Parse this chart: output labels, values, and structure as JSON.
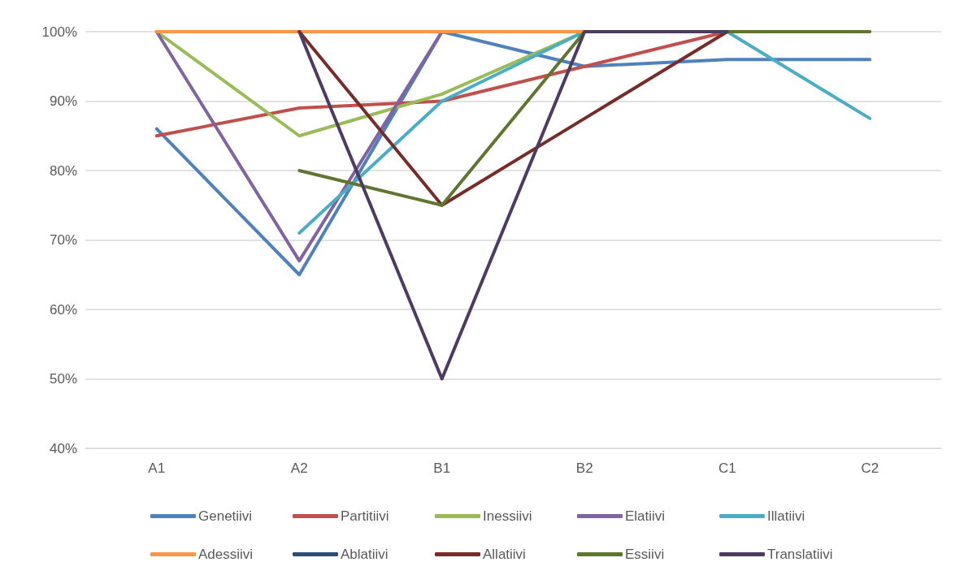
{
  "chart_data": {
    "type": "line",
    "categories": [
      "A1",
      "A2",
      "B1",
      "B2",
      "C1",
      "C2"
    ],
    "series": [
      {
        "name": "Genetiivi",
        "color": "#4f81bd",
        "values": [
          86,
          65,
          100,
          95,
          96,
          96
        ]
      },
      {
        "name": "Partitiivi",
        "color": "#c0504d",
        "values": [
          85,
          89,
          90,
          95,
          100,
          null
        ]
      },
      {
        "name": "Inessiivi",
        "color": "#9bbb59",
        "values": [
          100,
          85,
          91,
          100,
          null,
          null
        ]
      },
      {
        "name": "Elatiivi",
        "color": "#8064a2",
        "values": [
          100,
          67,
          100,
          null,
          null,
          null
        ]
      },
      {
        "name": "Illatiivi",
        "color": "#4bacc6",
        "values": [
          null,
          71,
          90,
          100,
          100,
          87.5
        ]
      },
      {
        "name": "Adessiivi",
        "color": "#f79646",
        "values": [
          100,
          100,
          100,
          100,
          null,
          null
        ]
      },
      {
        "name": "Ablatiivi",
        "color": "#2c4d75",
        "values": [
          null,
          null,
          null,
          null,
          null,
          null
        ]
      },
      {
        "name": "Allatiivi",
        "color": "#772c2a",
        "values": [
          null,
          100,
          75,
          87.5,
          100,
          null
        ]
      },
      {
        "name": "Essiivi",
        "color": "#5f7530",
        "values": [
          null,
          80,
          75,
          100,
          100,
          100
        ]
      },
      {
        "name": "Translatiivi",
        "color": "#4d3b62",
        "values": [
          null,
          100,
          50,
          100,
          100,
          null
        ]
      }
    ],
    "ylim": [
      40,
      100
    ],
    "yticks": [
      {
        "value": 40,
        "label": "40%"
      },
      {
        "value": 50,
        "label": "50%"
      },
      {
        "value": 60,
        "label": "60%"
      },
      {
        "value": 70,
        "label": "70%"
      },
      {
        "value": 80,
        "label": "80%"
      },
      {
        "value": 90,
        "label": "90%"
      },
      {
        "value": 100,
        "label": "100%"
      }
    ],
    "grid": "y",
    "legend": "bottom",
    "marker": "none"
  }
}
